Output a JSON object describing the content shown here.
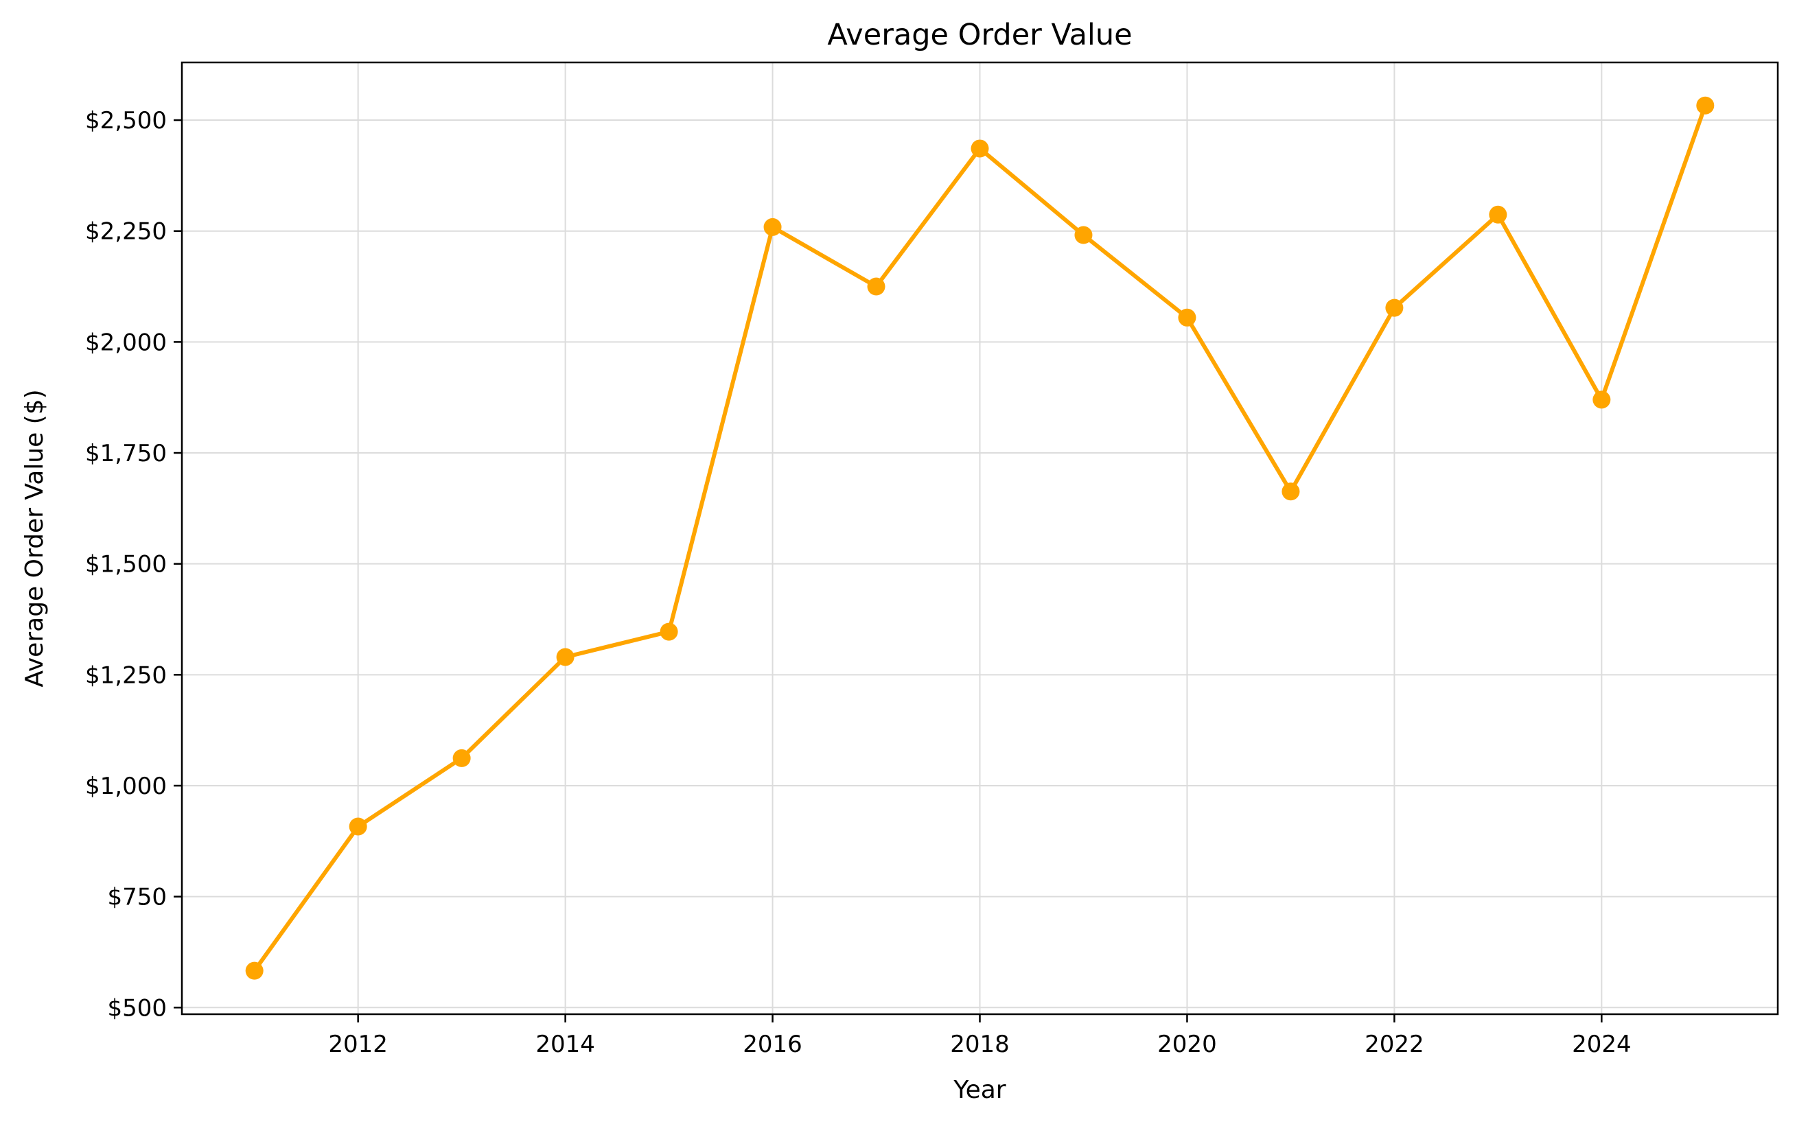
{
  "chart_data": {
    "type": "line",
    "title": "Average Order Value",
    "xlabel": "Year",
    "ylabel": "Average Order Value ($)",
    "x": [
      2011,
      2012,
      2013,
      2014,
      2015,
      2016,
      2017,
      2018,
      2019,
      2020,
      2021,
      2022,
      2023,
      2024,
      2025
    ],
    "series": [
      {
        "values": [
          583,
          908,
          1062,
          1290,
          1347,
          2259,
          2125,
          2436,
          2241,
          2055,
          1663,
          2077,
          2287,
          1870,
          2533
        ],
        "color": "#FFA500",
        "marker": "circle"
      }
    ],
    "xlim": [
      2010.3,
      2025.7
    ],
    "ylim": [
      485,
      2630
    ],
    "x_ticks": [
      2012,
      2014,
      2016,
      2018,
      2020,
      2022,
      2024
    ],
    "x_tick_labels": [
      "2012",
      "2014",
      "2016",
      "2018",
      "2020",
      "2022",
      "2024"
    ],
    "y_ticks": [
      500,
      750,
      1000,
      1250,
      1500,
      1750,
      2000,
      2250,
      2500
    ],
    "y_tick_labels": [
      "$500",
      "$750",
      "$1,000",
      "$1,250",
      "$1,500",
      "$1,750",
      "$2,000",
      "$2,250",
      "$2,500"
    ],
    "grid": true,
    "legend": false
  }
}
